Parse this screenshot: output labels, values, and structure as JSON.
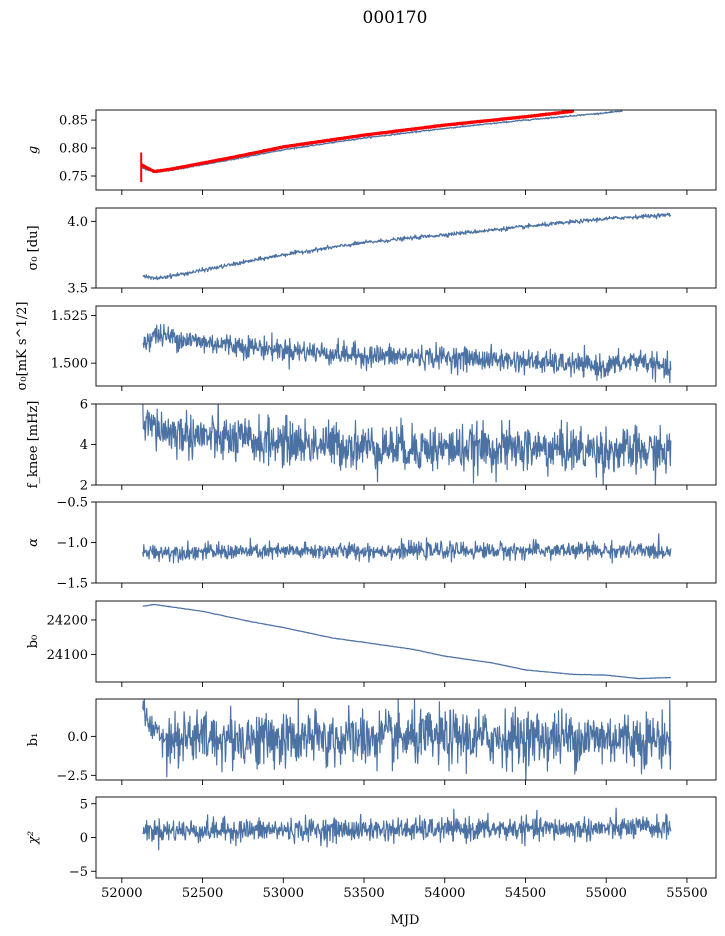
{
  "title": "000170",
  "xlabel": "MJD",
  "colors": {
    "series": "#4c72a4",
    "fit": "#ff0000",
    "axis": "#000000"
  },
  "x_ticks": [
    52000,
    52500,
    53000,
    53500,
    54000,
    54500,
    55000,
    55500
  ],
  "x_tick_labels": [
    "52000",
    "52500",
    "53000",
    "53500",
    "54000",
    "54500",
    "55000",
    "55500"
  ],
  "chart_data": [
    {
      "type": "line",
      "panel": "g",
      "ylabel": "g",
      "ylim": [
        0.725,
        0.868
      ],
      "yticks": [
        0.75,
        0.8,
        0.85
      ],
      "ytick_labels": [
        "0.75",
        "0.80",
        "0.85"
      ],
      "series": [
        {
          "x": [
            52120,
            52200,
            52300,
            52500,
            52750,
            53000,
            53500,
            54000,
            54500,
            55000,
            55100
          ],
          "values": [
            0.765,
            0.757,
            0.76,
            0.77,
            0.783,
            0.797,
            0.818,
            0.835,
            0.85,
            0.863,
            0.866
          ]
        },
        {
          "x": [
            52120,
            52200,
            52300,
            52500,
            52750,
            53000,
            53500,
            54000,
            54500,
            54800
          ],
          "values": [
            0.77,
            0.758,
            0.762,
            0.773,
            0.787,
            0.802,
            0.823,
            0.841,
            0.856,
            0.866
          ],
          "color": "red",
          "errorbar": {
            "x": 52120,
            "low": 0.739,
            "high": 0.792
          }
        }
      ]
    },
    {
      "type": "line",
      "panel": "sigma0",
      "ylabel": "σ₀ [du]",
      "ylim": [
        3.5,
        4.1
      ],
      "yticks": [
        3.5,
        4.0
      ],
      "ytick_labels": [
        "3.5",
        "4.0"
      ],
      "series": [
        {
          "x": [
            52130,
            52200,
            52400,
            52700,
            53000,
            53500,
            54000,
            54500,
            55000,
            55400
          ],
          "values": [
            3.59,
            3.57,
            3.61,
            3.68,
            3.75,
            3.84,
            3.9,
            3.96,
            4.02,
            4.05
          ]
        }
      ]
    },
    {
      "type": "line",
      "panel": "sigma0_mK",
      "ylabel": "σ₀[mK s^1/2]",
      "ylim": [
        1.488,
        1.53
      ],
      "yticks": [
        1.5,
        1.525
      ],
      "ytick_labels": [
        "1.500",
        "1.525"
      ],
      "series": [
        {
          "x": [
            52130,
            52200,
            52500,
            53000,
            53500,
            54000,
            54500,
            55000,
            55200,
            55400
          ],
          "values": [
            1.51,
            1.515,
            1.511,
            1.507,
            1.504,
            1.503,
            1.501,
            1.498,
            1.502,
            1.496
          ]
        }
      ]
    },
    {
      "type": "line",
      "panel": "fknee",
      "ylabel": "f_knee [mHz]",
      "ylim": [
        2,
        6
      ],
      "yticks": [
        2,
        4,
        6
      ],
      "ytick_labels": [
        "2",
        "4",
        "6"
      ],
      "series": [
        {
          "x": [
            52130,
            52300,
            52700,
            53000,
            53500,
            54000,
            54500,
            55000,
            55400
          ],
          "values": [
            5.0,
            4.6,
            4.2,
            4.1,
            3.9,
            3.8,
            3.8,
            3.7,
            3.6
          ]
        }
      ]
    },
    {
      "type": "line",
      "panel": "alpha",
      "ylabel": "α",
      "ylim": [
        -1.5,
        -0.5
      ],
      "yticks": [
        -1.5,
        -1.0,
        -0.5
      ],
      "ytick_labels": [
        "−1.5",
        "−1.0",
        "−0.5"
      ],
      "series": [
        {
          "x": [
            52130,
            53000,
            54000,
            55000,
            55400
          ],
          "values": [
            -1.12,
            -1.11,
            -1.1,
            -1.1,
            -1.11
          ]
        }
      ]
    },
    {
      "type": "line",
      "panel": "b0",
      "ylabel": "b₀",
      "ylim": [
        24020,
        24255
      ],
      "yticks": [
        24100,
        24200
      ],
      "ytick_labels": [
        "24100",
        "24200"
      ],
      "series": [
        {
          "x": [
            52130,
            52200,
            52500,
            52800,
            53000,
            53300,
            53500,
            53800,
            54000,
            54300,
            54500,
            54800,
            55000,
            55200,
            55400
          ],
          "values": [
            24240,
            24245,
            24225,
            24195,
            24178,
            24148,
            24135,
            24115,
            24095,
            24075,
            24055,
            24042,
            24040,
            24030,
            24033
          ]
        }
      ]
    },
    {
      "type": "line",
      "panel": "b1",
      "ylabel": "b₁",
      "ylim": [
        -2.8,
        2.4
      ],
      "yticks": [
        -2.5,
        0.0
      ],
      "ytick_labels": [
        "−2.5",
        "0.0"
      ],
      "series": [
        {
          "x": [
            52130,
            52180,
            52300,
            53000,
            54000,
            55000,
            55400
          ],
          "values": [
            1.8,
            0.5,
            -0.1,
            -0.2,
            -0.1,
            -0.1,
            -0.2
          ]
        }
      ]
    },
    {
      "type": "line",
      "panel": "chi2",
      "ylabel": "χ²",
      "ylim": [
        -6,
        6
      ],
      "yticks": [
        -5,
        0,
        5
      ],
      "ytick_labels": [
        "−5",
        "0",
        "5"
      ],
      "series": [
        {
          "x": [
            52130,
            53000,
            54000,
            55000,
            55400
          ],
          "values": [
            1.0,
            1.1,
            1.2,
            1.3,
            1.5
          ]
        }
      ]
    }
  ]
}
